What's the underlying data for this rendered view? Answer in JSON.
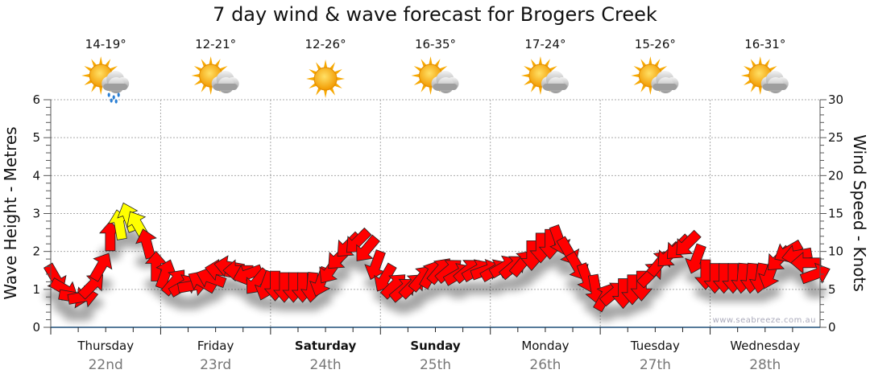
{
  "chart_data": {
    "type": "scatter",
    "title": "7 day wind & wave forecast for Brogers Creek",
    "ylabel_left": "Wave Height - Metres",
    "ylabel_right": "Wind Speed - Knots",
    "ylim_left": [
      0,
      6
    ],
    "ylim_right": [
      0,
      30
    ],
    "yticks_left": [
      "0",
      "1",
      "2",
      "3",
      "4",
      "5",
      "6"
    ],
    "yticks_right": [
      "0",
      "5",
      "10",
      "15",
      "20",
      "25",
      "30"
    ],
    "grid": true,
    "watermark": "www.seabreeze.com.au",
    "days": [
      {
        "day": "Thursday",
        "date": "22nd",
        "temp": "14-19°",
        "icon": "sun-cloud-rain",
        "bold": false
      },
      {
        "day": "Friday",
        "date": "23rd",
        "temp": "12-21°",
        "icon": "sun-cloud",
        "bold": false
      },
      {
        "day": "Saturday",
        "date": "24th",
        "temp": "12-26°",
        "icon": "sun",
        "bold": true
      },
      {
        "day": "Sunday",
        "date": "25th",
        "temp": "16-35°",
        "icon": "sun-cloud",
        "bold": true
      },
      {
        "day": "Monday",
        "date": "26th",
        "temp": "17-24°",
        "icon": "sun-cloud",
        "bold": false
      },
      {
        "day": "Tuesday",
        "date": "27th",
        "temp": "15-26°",
        "icon": "sun-cloud",
        "bold": false
      },
      {
        "day": "Wednesday",
        "date": "28th",
        "temp": "16-31°",
        "icon": "sun-cloud",
        "bold": false
      }
    ],
    "wind_interval_hours": 2,
    "wind_speed_knots": [
      6.5,
      5,
      4,
      4,
      5.5,
      8,
      12,
      13.5,
      14.5,
      13.5,
      11,
      8,
      7,
      6,
      5.5,
      5.5,
      6,
      6.5,
      7.5,
      8,
      7.5,
      7,
      6,
      5.5,
      5.5,
      5.3,
      5.3,
      5.3,
      5.3,
      6,
      7.5,
      9.2,
      10.8,
      11.3,
      10.3,
      8.2,
      6.5,
      5.5,
      5,
      5.5,
      6.5,
      7,
      7.5,
      7.5,
      7,
      7.5,
      7.5,
      7.5,
      7.5,
      8,
      8,
      8.5,
      9.5,
      10.5,
      11,
      11.5,
      10,
      8,
      6.5,
      5,
      4,
      4.5,
      4.5,
      5,
      5.5,
      7,
      8.5,
      9.5,
      10.5,
      11,
      9,
      7,
      6.5,
      6.5,
      6.5,
      6.5,
      6.5,
      6.5,
      7,
      9,
      10,
      9.5,
      8.5,
      7
    ],
    "wind_arrow_bearing_deg": [
      150,
      120,
      100,
      80,
      45,
      30,
      0,
      350,
      340,
      330,
      345,
      0,
      20,
      40,
      60,
      80,
      300,
      290,
      280,
      280,
      270,
      250,
      220,
      200,
      180,
      180,
      180,
      180,
      185,
      200,
      215,
      225,
      225,
      225,
      220,
      200,
      210,
      45,
      50,
      45,
      40,
      30,
      40,
      50,
      60,
      50,
      60,
      70,
      60,
      60,
      50,
      40,
      180,
      180,
      180,
      160,
      150,
      150,
      160,
      170,
      30,
      50,
      180,
      180,
      180,
      45,
      40,
      225,
      225,
      225,
      200,
      180,
      180,
      180,
      180,
      185,
      185,
      190,
      200,
      225,
      240,
      260,
      270,
      70
    ],
    "colors": {
      "normal": "#ff0000",
      "strong": "#ffff00",
      "axis": "#1f4e79",
      "grid": "#aaaaaa"
    },
    "strong_threshold_knots": 13
  }
}
